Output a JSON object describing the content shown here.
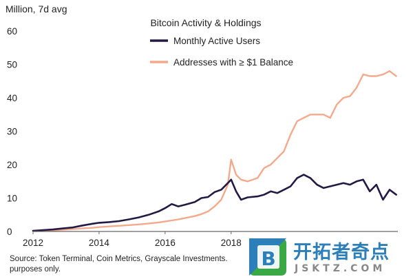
{
  "chart_data": {
    "type": "line",
    "title": "Bitcoin Activity & Holdings",
    "ylabel": "Million, 7d avg",
    "xlabel": "",
    "ylim": [
      0,
      60
    ],
    "xlim": [
      2012,
      2023.05
    ],
    "y_ticks": [
      0,
      10,
      20,
      30,
      40,
      50,
      60
    ],
    "x_ticks": [
      2012,
      2014,
      2016,
      2018
    ],
    "grid": false,
    "legend_position": "top-center",
    "series": [
      {
        "name": "Monthly Active Users",
        "color": "#231942",
        "x": [
          2012.0,
          2012.3,
          2012.6,
          2012.9,
          2013.2,
          2013.5,
          2013.8,
          2014.0,
          2014.3,
          2014.6,
          2014.9,
          2015.2,
          2015.5,
          2015.8,
          2016.0,
          2016.2,
          2016.4,
          2016.6,
          2016.9,
          2017.1,
          2017.3,
          2017.5,
          2017.7,
          2017.9,
          2018.0,
          2018.15,
          2018.3,
          2018.5,
          2018.8,
          2019.0,
          2019.2,
          2019.4,
          2019.6,
          2019.8,
          2020.0,
          2020.2,
          2020.4,
          2020.6,
          2020.8,
          2021.0,
          2021.2,
          2021.4,
          2021.6,
          2021.8,
          2022.0,
          2022.2,
          2022.4,
          2022.6,
          2022.8,
          2023.0
        ],
        "values": [
          0.2,
          0.4,
          0.6,
          0.9,
          1.2,
          1.8,
          2.3,
          2.6,
          2.8,
          3.1,
          3.6,
          4.2,
          5.0,
          6.0,
          7.0,
          8.2,
          7.5,
          8.0,
          8.8,
          10.0,
          10.3,
          11.8,
          12.5,
          14.5,
          15.5,
          12.0,
          9.5,
          10.2,
          10.5,
          11.0,
          12.0,
          11.5,
          12.5,
          13.5,
          16.0,
          17.0,
          16.0,
          14.0,
          13.0,
          13.5,
          14.0,
          14.5,
          14.0,
          15.0,
          15.5,
          12.0,
          14.0,
          9.5,
          12.5,
          11.0
        ]
      },
      {
        "name": "Addresses with ≥ $1 Balance",
        "color": "#f2a98c",
        "x": [
          2012.0,
          2012.3,
          2012.6,
          2012.9,
          2013.2,
          2013.5,
          2013.8,
          2014.0,
          2014.3,
          2014.6,
          2014.9,
          2015.2,
          2015.5,
          2015.8,
          2016.0,
          2016.2,
          2016.4,
          2016.6,
          2016.9,
          2017.1,
          2017.3,
          2017.5,
          2017.7,
          2017.9,
          2018.0,
          2018.15,
          2018.3,
          2018.5,
          2018.8,
          2019.0,
          2019.2,
          2019.4,
          2019.6,
          2019.8,
          2020.0,
          2020.2,
          2020.4,
          2020.6,
          2020.8,
          2021.0,
          2021.2,
          2021.4,
          2021.6,
          2021.8,
          2022.0,
          2022.2,
          2022.4,
          2022.6,
          2022.8,
          2023.0
        ],
        "values": [
          0.1,
          0.2,
          0.3,
          0.5,
          0.7,
          0.9,
          1.1,
          1.3,
          1.5,
          1.7,
          1.9,
          2.1,
          2.4,
          2.7,
          3.0,
          3.3,
          3.6,
          4.0,
          4.6,
          5.2,
          6.0,
          7.5,
          9.5,
          14.0,
          21.5,
          17.0,
          15.5,
          15.0,
          16.0,
          19.0,
          20.0,
          22.0,
          24.0,
          29.0,
          33.0,
          34.0,
          35.0,
          35.0,
          35.0,
          34.0,
          38.0,
          40.0,
          40.5,
          43.0,
          47.0,
          46.5,
          46.5,
          47.0,
          48.0,
          46.5
        ]
      }
    ]
  },
  "source_lines": [
    "Source: Token Terminal, Coin Metrics, Grayscale Investments.",
    "purposes only."
  ],
  "watermark": {
    "logo_letter": "B",
    "title": "开拓者奇点",
    "url": "JSKTZ.COM"
  }
}
